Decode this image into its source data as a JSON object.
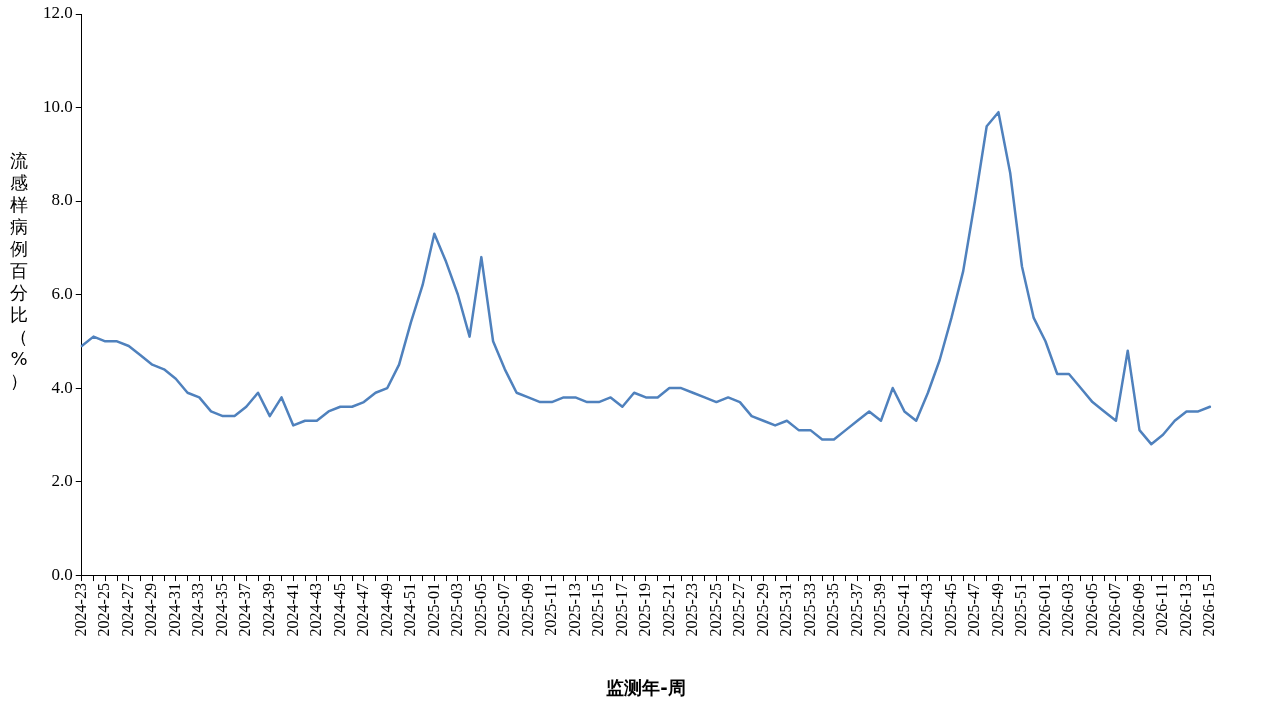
{
  "chart_data": {
    "type": "line",
    "xlabel": "监测年-周",
    "ylabel": "流感样病例百分比（%）",
    "categories": [
      "2024-23",
      null,
      "2024-25",
      null,
      "2024-27",
      null,
      "2024-29",
      null,
      "2024-31",
      null,
      "2024-33",
      null,
      "2024-35",
      null,
      "2024-37",
      null,
      "2024-39",
      null,
      "2024-41",
      null,
      "2024-43",
      null,
      "2024-45",
      null,
      "2024-47",
      null,
      "2024-49",
      null,
      "2024-51",
      null,
      "2025-01",
      null,
      "2025-03",
      null,
      "2025-05",
      null,
      "2025-07",
      null,
      "2025-09",
      null,
      "2025-11",
      null,
      "2025-13",
      null,
      "2025-15",
      null,
      "2025-17",
      null,
      "2025-19",
      null,
      "2025-21",
      null,
      "2025-23",
      null,
      "2025-25",
      null,
      "2025-27",
      null,
      "2025-29",
      null,
      "2025-31",
      null,
      "2025-33",
      null,
      "2025-35",
      null,
      "2025-37",
      null,
      "2025-39",
      null,
      "2025-41",
      null,
      "2025-43",
      null,
      "2025-45",
      null,
      "2025-47",
      null,
      "2025-49",
      null,
      "2025-51",
      null,
      "2026-01",
      null,
      "2026-03",
      null,
      "2026-05",
      null,
      "2026-07",
      null,
      "2026-09",
      null,
      "2026-11",
      null,
      "2026-13",
      null,
      "2026-15"
    ],
    "series": [
      {
        "color": "#4f81bd",
        "values": [
          4.9,
          5.1,
          5.0,
          5.0,
          4.9,
          4.7,
          4.5,
          4.4,
          4.2,
          3.9,
          3.8,
          3.5,
          3.4,
          3.4,
          3.6,
          3.9,
          3.4,
          3.8,
          3.2,
          3.3,
          3.3,
          3.5,
          3.6,
          3.6,
          3.7,
          3.9,
          4.0,
          4.5,
          5.4,
          6.2,
          7.3,
          6.7,
          6.0,
          5.1,
          6.8,
          5.0,
          4.4,
          3.9,
          3.8,
          3.7,
          3.7,
          3.8,
          3.8,
          3.7,
          3.7,
          3.8,
          3.6,
          3.9,
          3.8,
          3.8,
          4.0,
          4.0,
          3.9,
          3.8,
          3.7,
          3.8,
          3.7,
          3.4,
          3.3,
          3.2,
          3.3,
          3.1,
          3.1,
          2.9,
          2.9,
          3.1,
          3.3,
          3.5,
          3.3,
          4.0,
          3.5,
          3.3,
          3.9,
          4.6,
          5.5,
          6.5,
          8.0,
          9.6,
          9.9,
          8.6,
          6.6,
          5.5,
          5.0,
          4.3,
          4.3,
          4.0,
          3.7,
          3.5,
          3.3,
          4.8,
          3.1,
          2.8,
          3.0,
          3.3,
          3.5,
          3.5,
          3.6
        ]
      }
    ],
    "ylim": [
      0,
      12
    ],
    "yticks": [
      {
        "value": 0,
        "label": "0.0"
      },
      {
        "value": 2,
        "label": "2.0"
      },
      {
        "value": 4,
        "label": "4.0"
      },
      {
        "value": 6,
        "label": "6.0"
      },
      {
        "value": 8,
        "label": "8.0"
      },
      {
        "value": 10,
        "label": "10.0"
      },
      {
        "value": 12,
        "label": "12.0"
      }
    ],
    "grid": false,
    "legend": false,
    "marker": "none",
    "line_style": "solid"
  }
}
